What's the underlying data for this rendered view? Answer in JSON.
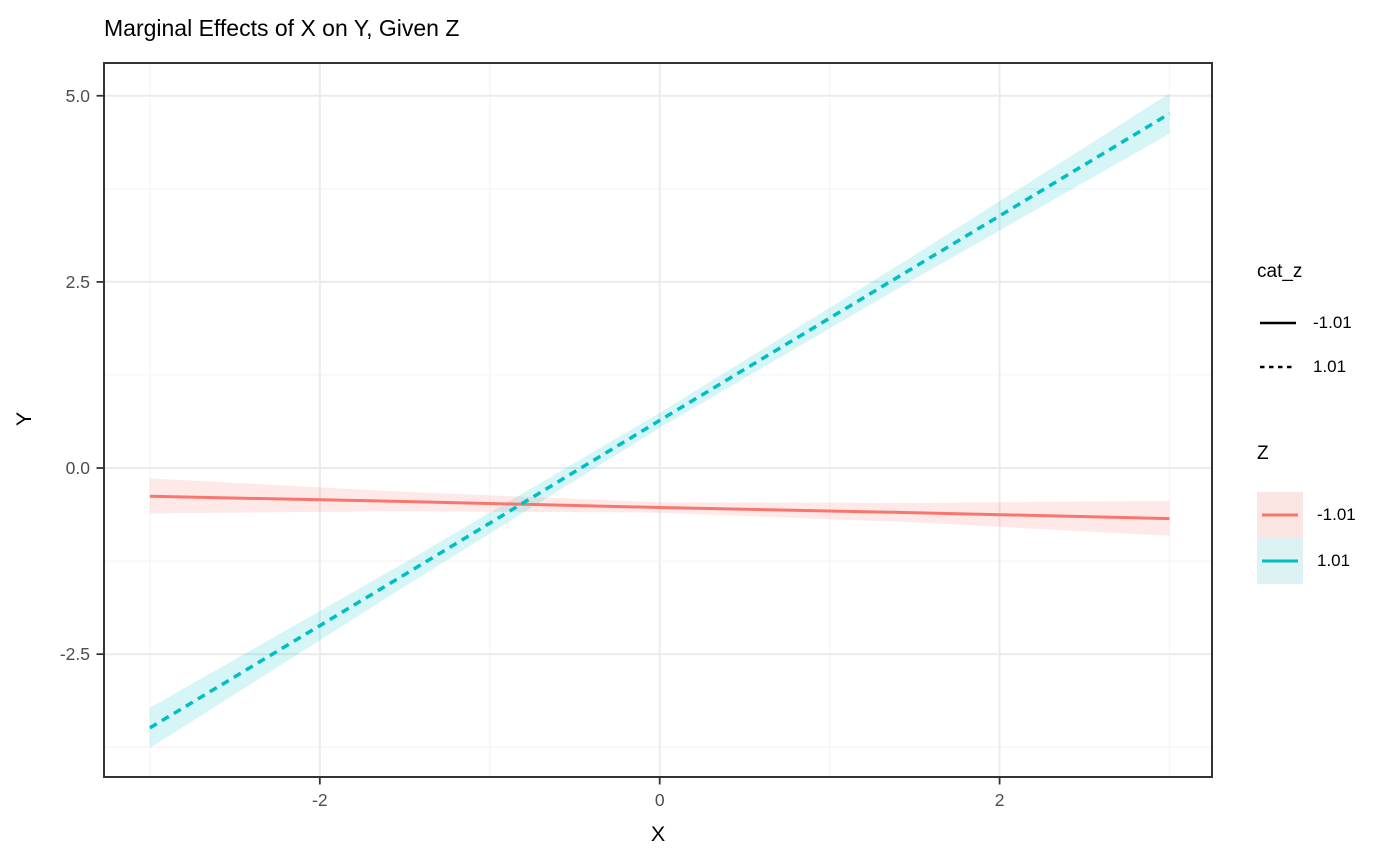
{
  "chart_data": {
    "type": "line",
    "title": "Marginal Effects of X on Y, Given Z",
    "xlabel": "X",
    "ylabel": "Y",
    "xlim": [
      -3.27,
      3.25
    ],
    "ylim": [
      -4.15,
      5.44
    ],
    "x_ticks": [
      -2,
      0,
      2
    ],
    "x_tick_labels": [
      "-2",
      "0",
      "2"
    ],
    "y_ticks": [
      -2.5,
      0,
      2.5,
      5
    ],
    "y_tick_labels": [
      "-2.5",
      "0.0",
      "2.5",
      "5.0"
    ],
    "x_minor_gridlines": [
      -3,
      -1,
      1,
      3
    ],
    "y_minor_gridlines": [
      -3.75,
      -1.25,
      1.25,
      3.75
    ],
    "grid": true,
    "legend_position": "right",
    "ribbon_opacity": 0.16,
    "series": [
      {
        "name": "Z = -1.01",
        "z": "-1.01",
        "cat_z": "-1.01",
        "color": "#F8766D",
        "linetype": "solid",
        "x": [
          -3,
          -1.5,
          0,
          1.5,
          3
        ],
        "y": [
          -0.38,
          -0.45,
          -0.53,
          -0.6,
          -0.68
        ],
        "ci_low": [
          -0.61,
          -0.58,
          -0.6,
          -0.73,
          -0.91
        ],
        "ci_high": [
          -0.14,
          -0.32,
          -0.46,
          -0.47,
          -0.44
        ]
      },
      {
        "name": "Z = 1.01",
        "z": "1.01",
        "cat_z": "1.01",
        "color": "#00BFC4",
        "linetype": "dashed",
        "x": [
          -3,
          -1.5,
          0,
          1.5,
          3
        ],
        "y": [
          -3.49,
          -1.43,
          0.64,
          2.7,
          4.76
        ],
        "ci_low": [
          -3.76,
          -1.59,
          0.54,
          2.54,
          4.49
        ],
        "ci_high": [
          -3.22,
          -1.27,
          0.74,
          2.86,
          5.03
        ]
      }
    ]
  },
  "legends": [
    {
      "title": "cat_z",
      "entries": [
        {
          "label": "-1.01",
          "linetype": "solid"
        },
        {
          "label": "1.01",
          "linetype": "dashed"
        }
      ]
    },
    {
      "title": "Z",
      "entries": [
        {
          "label": "-1.01",
          "color": "#F8766D",
          "fill": "#FCE6E3"
        },
        {
          "label": "1.01",
          "color": "#00BFC4",
          "fill": "#DCF2F3"
        }
      ]
    }
  ],
  "colors": {
    "background": "#FFFFFF",
    "panel_border": "#333333",
    "grid_major": "#EBEBEB",
    "grid_minor": "#F5F5F5",
    "tick_mark": "#333333",
    "tick_label": "#4D4D4D",
    "text": "#000000"
  }
}
